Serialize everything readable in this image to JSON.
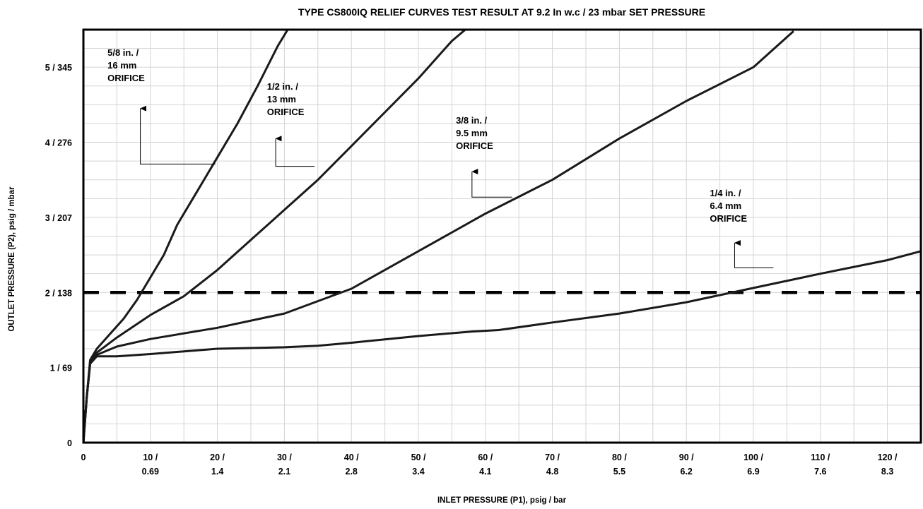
{
  "chart_data": {
    "type": "line",
    "title": "TYPE CS800IQ RELIEF CURVES TEST RESULT AT 9.2 In w.c / 23 mbar SET PRESSURE",
    "xlabel": "INLET PRESSURE (P1), psig / bar",
    "ylabel": "OUTLET PRESSURE (P2), psig / mbar",
    "xlim": [
      0,
      125
    ],
    "ylim": [
      0,
      5.5
    ],
    "grid": true,
    "x_ticks": [
      {
        "value": 0,
        "line1": "0",
        "line2": ""
      },
      {
        "value": 10,
        "line1": "10 /",
        "line2": "0.69"
      },
      {
        "value": 20,
        "line1": "20 /",
        "line2": "1.4"
      },
      {
        "value": 30,
        "line1": "30 /",
        "line2": "2.1"
      },
      {
        "value": 40,
        "line1": "40 /",
        "line2": "2.8"
      },
      {
        "value": 50,
        "line1": "50 /",
        "line2": "3.4"
      },
      {
        "value": 60,
        "line1": "60 /",
        "line2": "4.1"
      },
      {
        "value": 70,
        "line1": "70 /",
        "line2": "4.8"
      },
      {
        "value": 80,
        "line1": "80 /",
        "line2": "5.5"
      },
      {
        "value": 90,
        "line1": "90 /",
        "line2": "6.2"
      },
      {
        "value": 100,
        "line1": "100 /",
        "line2": "6.9"
      },
      {
        "value": 110,
        "line1": "110 /",
        "line2": "7.6"
      },
      {
        "value": 120,
        "line1": "120 /",
        "line2": "8.3"
      }
    ],
    "y_ticks": [
      {
        "value": 0,
        "label": "0"
      },
      {
        "value": 1,
        "label": "1 / 69"
      },
      {
        "value": 2,
        "label": "2 / 138"
      },
      {
        "value": 3,
        "label": "3 / 207"
      },
      {
        "value": 4,
        "label": "4 / 276"
      },
      {
        "value": 5,
        "label": "5 / 345"
      }
    ],
    "reference_line": {
      "y": 2.0,
      "style": "dashed"
    },
    "series": [
      {
        "name": "5/8 in. / 16 mm ORIFICE",
        "points": [
          [
            0,
            0
          ],
          [
            0.5,
            0.6
          ],
          [
            1,
            1.1
          ],
          [
            2,
            1.25
          ],
          [
            4,
            1.45
          ],
          [
            6,
            1.65
          ],
          [
            8,
            1.9
          ],
          [
            10,
            2.2
          ],
          [
            12,
            2.5
          ],
          [
            14,
            2.9
          ],
          [
            17,
            3.35
          ],
          [
            20,
            3.8
          ],
          [
            23,
            4.25
          ],
          [
            26,
            4.75
          ],
          [
            29,
            5.28
          ],
          [
            30.5,
            5.5
          ]
        ]
      },
      {
        "name": "1/2 in. / 13 mm ORIFICE",
        "points": [
          [
            0,
            0
          ],
          [
            0.5,
            0.6
          ],
          [
            1,
            1.05
          ],
          [
            2,
            1.2
          ],
          [
            5,
            1.4
          ],
          [
            10,
            1.7
          ],
          [
            15,
            1.95
          ],
          [
            20,
            2.3
          ],
          [
            25,
            2.7
          ],
          [
            30,
            3.1
          ],
          [
            35,
            3.5
          ],
          [
            40,
            3.95
          ],
          [
            45,
            4.4
          ],
          [
            50,
            4.85
          ],
          [
            55,
            5.35
          ],
          [
            57,
            5.5
          ]
        ]
      },
      {
        "name": "3/8 in. / 9.5 mm ORIFICE",
        "points": [
          [
            0,
            0
          ],
          [
            0.5,
            0.6
          ],
          [
            1,
            1.05
          ],
          [
            2,
            1.17
          ],
          [
            5,
            1.28
          ],
          [
            10,
            1.38
          ],
          [
            20,
            1.53
          ],
          [
            30,
            1.72
          ],
          [
            40,
            2.05
          ],
          [
            50,
            2.55
          ],
          [
            60,
            3.05
          ],
          [
            70,
            3.5
          ],
          [
            80,
            4.05
          ],
          [
            90,
            4.55
          ],
          [
            100,
            5.0
          ],
          [
            105,
            5.4
          ],
          [
            106,
            5.48
          ]
        ]
      },
      {
        "name": "1/4 in. / 6.4 mm ORIFICE",
        "points": [
          [
            0,
            0
          ],
          [
            0.5,
            0.6
          ],
          [
            1,
            1.05
          ],
          [
            2,
            1.15
          ],
          [
            5,
            1.15
          ],
          [
            10,
            1.18
          ],
          [
            20,
            1.25
          ],
          [
            30,
            1.27
          ],
          [
            35,
            1.29
          ],
          [
            40,
            1.33
          ],
          [
            50,
            1.42
          ],
          [
            58,
            1.48
          ],
          [
            62,
            1.5
          ],
          [
            70,
            1.6
          ],
          [
            80,
            1.72
          ],
          [
            90,
            1.87
          ],
          [
            100,
            2.06
          ],
          [
            110,
            2.25
          ],
          [
            120,
            2.43
          ],
          [
            125,
            2.55
          ]
        ]
      }
    ],
    "annotations": [
      {
        "lines": [
          "5/8 in. /",
          "16 mm",
          "ORIFICE"
        ],
        "x": 3.6,
        "y": 5.15,
        "arrow_x": 8.5,
        "arrow_tip_y": 4.45,
        "elbow_y": 3.71,
        "target_x": 19.7
      },
      {
        "lines": [
          "1/2 in. /",
          "13 mm",
          "ORIFICE"
        ],
        "x": 27.4,
        "y": 4.7,
        "arrow_x": 28.7,
        "arrow_tip_y": 4.05,
        "elbow_y": 3.68,
        "target_x": 34.5
      },
      {
        "lines": [
          "3/8 in. /",
          "9.5 mm",
          "ORIFICE"
        ],
        "x": 55.6,
        "y": 4.25,
        "arrow_x": 58.0,
        "arrow_tip_y": 3.61,
        "elbow_y": 3.27,
        "target_x": 64.0
      },
      {
        "lines": [
          "1/4 in. /",
          "6.4 mm",
          "ORIFICE"
        ],
        "x": 93.5,
        "y": 3.28,
        "arrow_x": 97.2,
        "arrow_tip_y": 2.66,
        "elbow_y": 2.33,
        "target_x": 103.0
      }
    ]
  }
}
